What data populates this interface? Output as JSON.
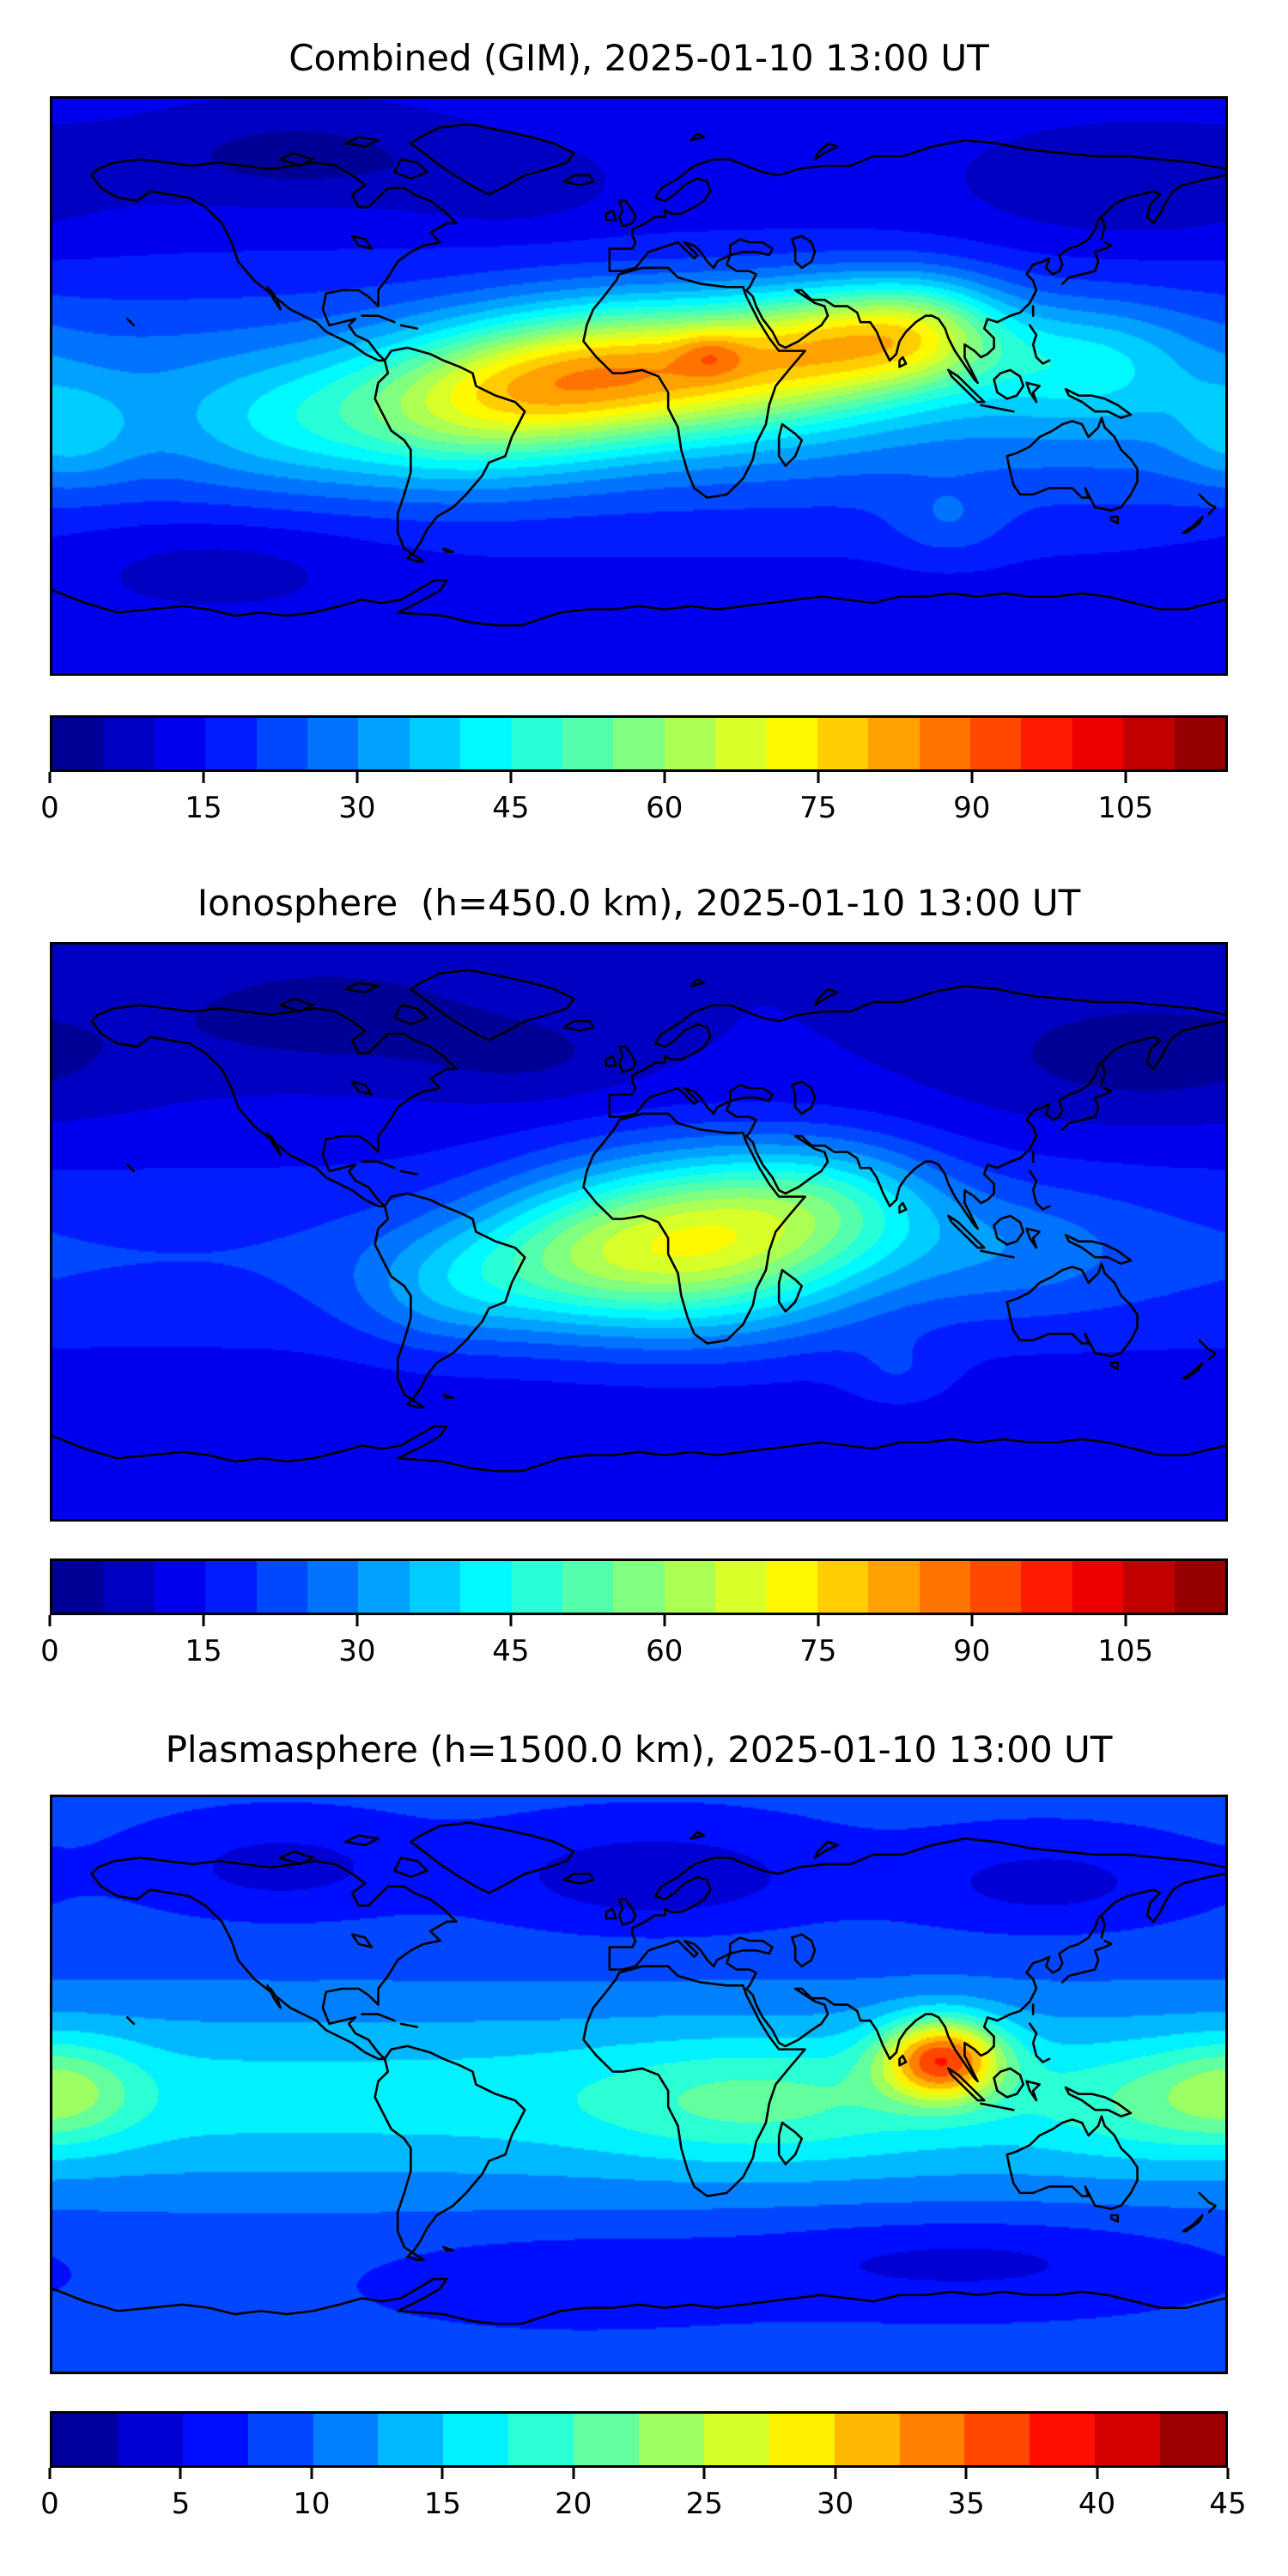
{
  "figure": {
    "background": "#ffffff",
    "colormap": "jet",
    "projection": "equirectangular lon -180..180, lat -90..90",
    "timestamp": "2025-01-10 13:00 UT"
  },
  "chart_data": [
    {
      "type": "heatmap",
      "title": "Combined (GIM), 2025-01-10 13:00 UT",
      "colormap": "jet",
      "colorbar": {
        "min": 0,
        "max": 115,
        "step": 5,
        "ticks": [
          0,
          15,
          30,
          45,
          60,
          75,
          90,
          105
        ]
      },
      "field": {
        "base": 12,
        "lat_band": {
          "lat": -5,
          "sigma": 26,
          "amp": 17
        },
        "hotspots": [
          {
            "lon": 12,
            "lat": 6,
            "amp": 48,
            "sx": 36,
            "sy": 15
          },
          {
            "lon": 22,
            "lat": 10,
            "amp": 10,
            "sx": 7,
            "sy": 5
          },
          {
            "lon": 60,
            "lat": 14,
            "amp": 30,
            "sx": 22,
            "sy": 13
          },
          {
            "lon": 88,
            "lat": 17,
            "amp": 30,
            "sx": 18,
            "sy": 12
          },
          {
            "lon": 135,
            "lat": 8,
            "amp": 16,
            "sx": 24,
            "sy": 13
          },
          {
            "lon": -32,
            "lat": -2,
            "amp": 26,
            "sx": 26,
            "sy": 15
          },
          {
            "lon": -65,
            "lat": -8,
            "amp": 20,
            "sx": 26,
            "sy": 16
          },
          {
            "lon": -110,
            "lat": -12,
            "amp": 10,
            "sx": 24,
            "sy": 14
          },
          {
            "lon": -175,
            "lat": -15,
            "amp": 11,
            "sx": 14,
            "sy": 11
          },
          {
            "lon": 95,
            "lat": -43,
            "amp": 7,
            "sx": 12,
            "sy": 8
          },
          {
            "lon": -105,
            "lat": 72,
            "amp": -9,
            "sx": 35,
            "sy": 11
          },
          {
            "lon": -40,
            "lat": 62,
            "amp": -6,
            "sx": 22,
            "sy": 9
          },
          {
            "lon": 150,
            "lat": 62,
            "amp": -7,
            "sx": 35,
            "sy": 13
          },
          {
            "lon": -130,
            "lat": -55,
            "amp": -6,
            "sx": 35,
            "sy": 11
          }
        ]
      }
    },
    {
      "type": "heatmap",
      "title": "Ionosphere  (h=450.0 km), 2025-01-10 13:00 UT",
      "colormap": "jet",
      "colorbar": {
        "min": 0,
        "max": 115,
        "step": 5,
        "ticks": [
          0,
          15,
          30,
          45,
          60,
          75,
          90,
          105
        ]
      },
      "field": {
        "base": 10,
        "lat_band": {
          "lat": -8,
          "sigma": 24,
          "amp": 10
        },
        "hotspots": [
          {
            "lon": 18,
            "lat": -3,
            "amp": 46,
            "sx": 34,
            "sy": 19
          },
          {
            "lon": 60,
            "lat": 10,
            "amp": 18,
            "sx": 25,
            "sy": 14
          },
          {
            "lon": -25,
            "lat": -10,
            "amp": 16,
            "sx": 24,
            "sy": 15
          },
          {
            "lon": -60,
            "lat": -18,
            "amp": 12,
            "sx": 20,
            "sy": 13
          },
          {
            "lon": 115,
            "lat": -5,
            "amp": 8,
            "sx": 28,
            "sy": 14
          },
          {
            "lon": 80,
            "lat": -45,
            "amp": 6,
            "sx": 12,
            "sy": 8
          },
          {
            "lon": -95,
            "lat": 68,
            "amp": -8,
            "sx": 35,
            "sy": 12
          },
          {
            "lon": -35,
            "lat": 55,
            "amp": -6,
            "sx": 25,
            "sy": 10
          },
          {
            "lon": 155,
            "lat": 55,
            "amp": -8,
            "sx": 38,
            "sy": 14
          }
        ]
      }
    },
    {
      "type": "heatmap",
      "title": "Plasmasphere (h=1500.0 km), 2025-01-10 13:00 UT",
      "colormap": "jet",
      "colorbar": {
        "min": 0,
        "max": 45,
        "step": 2.5,
        "ticks": [
          0,
          5,
          10,
          15,
          20,
          25,
          30,
          35,
          40,
          45
        ]
      },
      "field": {
        "base": 8,
        "lat_band": {
          "lat": -4,
          "sigma": 22,
          "amp": 8
        },
        "hotspots": [
          {
            "lon": 93,
            "lat": 8,
            "amp": 22,
            "sx": 13,
            "sy": 9
          },
          {
            "lon": -176,
            "lat": -2,
            "amp": 7,
            "sx": 16,
            "sy": 11
          },
          {
            "lon": 35,
            "lat": -6,
            "amp": 5,
            "sx": 35,
            "sy": 13
          },
          {
            "lon": 155,
            "lat": -6,
            "amp": 4,
            "sx": 22,
            "sy": 12
          },
          {
            "lon": -110,
            "lat": 68,
            "amp": -4,
            "sx": 28,
            "sy": 10
          },
          {
            "lon": 5,
            "lat": 65,
            "amp": -5,
            "sx": 35,
            "sy": 11
          },
          {
            "lon": 125,
            "lat": 63,
            "amp": -4,
            "sx": 30,
            "sy": 10
          },
          {
            "lon": 100,
            "lat": -55,
            "amp": -4,
            "sx": 50,
            "sy": 10
          },
          {
            "lon": -20,
            "lat": -60,
            "amp": -3,
            "sx": 40,
            "sy": 9
          }
        ]
      }
    }
  ]
}
